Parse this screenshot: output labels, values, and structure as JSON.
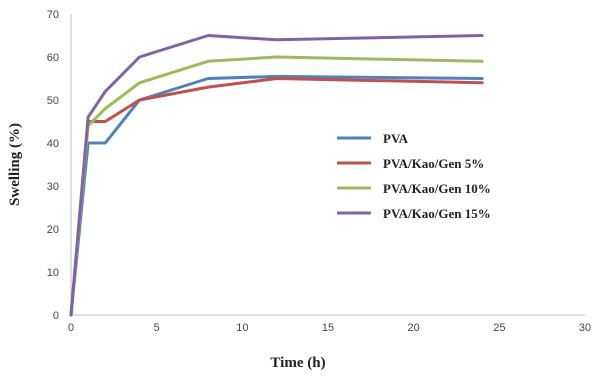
{
  "chart_data": {
    "type": "line",
    "xlabel": "Time (h)",
    "ylabel": "Swelling (%)",
    "xlim": [
      0,
      30
    ],
    "ylim": [
      0,
      70
    ],
    "xticks": [
      0,
      5,
      10,
      15,
      20,
      25,
      30
    ],
    "yticks": [
      0,
      10,
      20,
      30,
      40,
      50,
      60,
      70
    ],
    "grid": false,
    "legend_position": "center-right",
    "series": [
      {
        "name": "PVA",
        "color": "#4f81bd",
        "x": [
          0,
          1,
          2,
          4,
          8,
          12,
          24
        ],
        "y": [
          0,
          40,
          40,
          50,
          55,
          55.5,
          55
        ]
      },
      {
        "name": "PVA/Kao/Gen 5%",
        "color": "#c0504d",
        "x": [
          0,
          1,
          2,
          4,
          8,
          12,
          24
        ],
        "y": [
          0,
          45,
          45,
          50,
          53,
          55,
          54
        ]
      },
      {
        "name": "PVA/Kao/Gen 10%",
        "color": "#9bbb59",
        "x": [
          0,
          1,
          2,
          4,
          8,
          12,
          24
        ],
        "y": [
          0,
          44,
          48,
          54,
          59,
          60,
          59
        ]
      },
      {
        "name": "PVA/Kao/Gen 15%",
        "color": "#8064a2",
        "x": [
          0,
          1,
          2,
          4,
          8,
          12,
          24
        ],
        "y": [
          0,
          46,
          52,
          60,
          65,
          64,
          65
        ]
      }
    ]
  }
}
